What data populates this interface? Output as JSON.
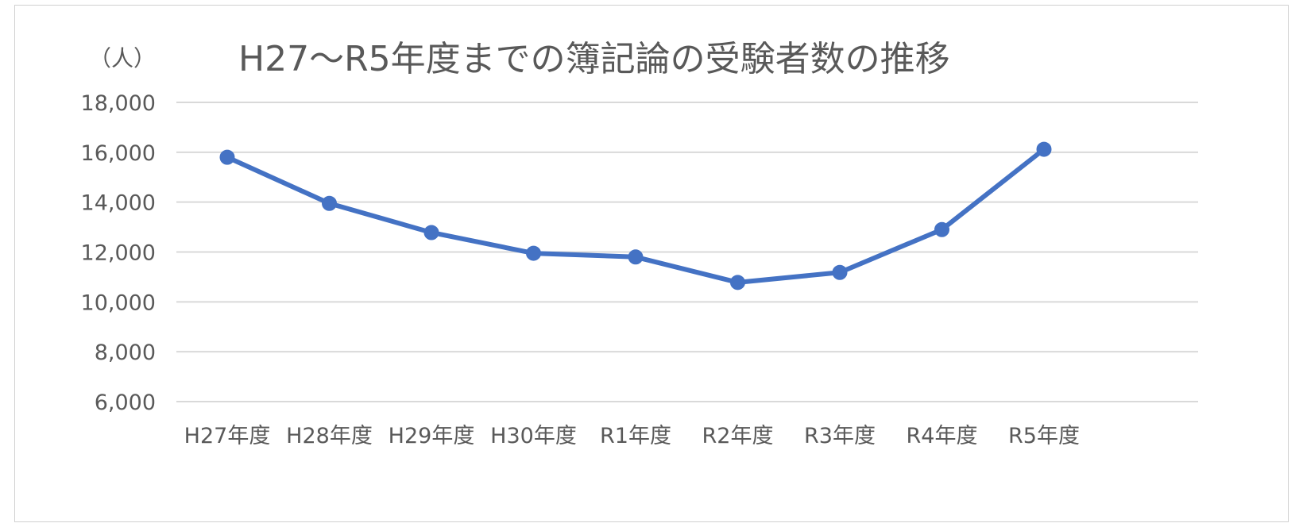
{
  "chart_data": {
    "type": "line",
    "title": "H27～R5年度までの簿記論の受験者数の推移",
    "ylabel": "（人）",
    "xlabel": "",
    "categories": [
      "H27年度",
      "H28年度",
      "H29年度",
      "H30年度",
      "R1年度",
      "R2年度",
      "R3年度",
      "R4年度",
      "R5年度"
    ],
    "series": [
      {
        "values": [
          15800,
          13950,
          12780,
          11950,
          11800,
          10780,
          11180,
          12900,
          16120
        ]
      }
    ],
    "ylim": [
      6000,
      18000
    ],
    "yticks": [
      "6,000",
      "8,000",
      "10,000",
      "12,000",
      "14,000",
      "16,000",
      "18,000"
    ],
    "ytick_values": [
      6000,
      8000,
      10000,
      12000,
      14000,
      16000,
      18000
    ],
    "grid": true,
    "line_color": "#4472c4",
    "grid_color": "#d9d9d9",
    "text_color": "#595959"
  }
}
